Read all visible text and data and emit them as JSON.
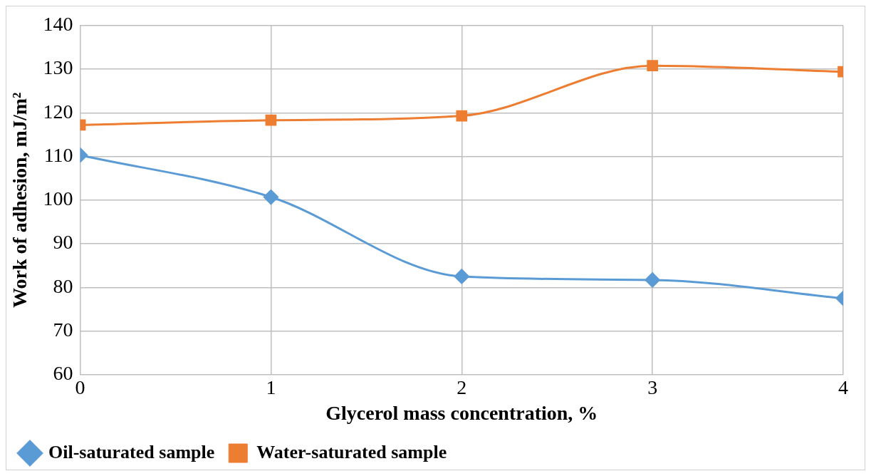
{
  "chart_data": {
    "type": "line",
    "xlabel": "Glycerol mass concentration, %",
    "ylabel": "Work of adhesion, mJ/m²",
    "x": [
      0,
      1,
      2,
      3,
      4
    ],
    "xlim": [
      0,
      4
    ],
    "xticks": [
      0,
      1,
      2,
      3,
      4
    ],
    "ylim": [
      60,
      140
    ],
    "yticks": [
      60,
      70,
      80,
      90,
      100,
      110,
      120,
      130,
      140
    ],
    "grid": true,
    "legend": "bottom",
    "series": [
      {
        "name": "Oil-saturated sample",
        "color": "#5b9bd5",
        "marker": "diamond",
        "values": [
          110.3,
          100.7,
          82.5,
          81.7,
          77.5
        ]
      },
      {
        "name": "Water-saturated sample",
        "color": "#ed7d31",
        "marker": "square",
        "values": [
          117.2,
          118.3,
          119.3,
          130.8,
          129.4
        ]
      }
    ]
  }
}
